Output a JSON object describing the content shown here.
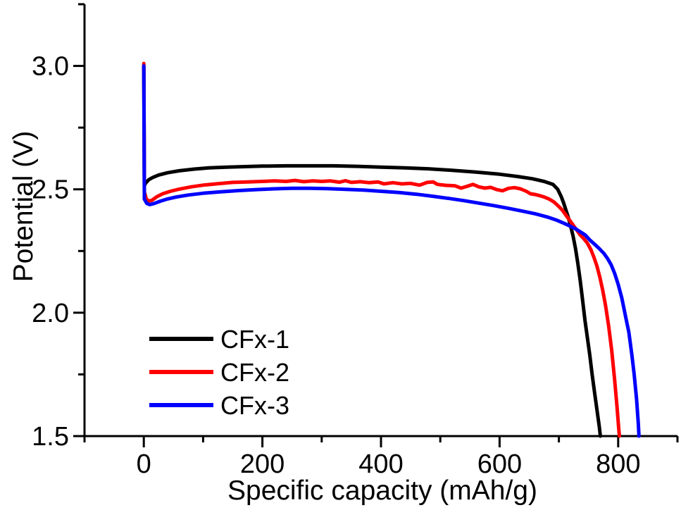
{
  "chart_data": {
    "type": "line",
    "title": "",
    "xlabel": "Specific capacity (mAh/g)",
    "ylabel": "Potential (V)",
    "xlim": [
      -100,
      900
    ],
    "ylim": [
      1.5,
      3.25
    ],
    "grid": false,
    "background": "#ffffff",
    "axis_color": "#000000",
    "x_major_ticks": [
      0,
      200,
      400,
      600,
      800
    ],
    "x_major_tick_labels": [
      "0",
      "200",
      "400",
      "600",
      "800"
    ],
    "x_minor_ticks": [
      -100,
      100,
      300,
      500,
      700,
      900
    ],
    "y_major_ticks": [
      1.5,
      2.0,
      2.5,
      3.0
    ],
    "y_major_tick_labels": [
      "1.5",
      "2.0",
      "2.5",
      "3.0"
    ],
    "y_minor_ticks": [
      1.75,
      2.25,
      2.75,
      3.25
    ],
    "legend_position": "lower-left-inside",
    "series": [
      {
        "name": "CFx-1",
        "color": "#000000",
        "points": [
          [
            0,
            3.0
          ],
          [
            1,
            2.515
          ],
          [
            3,
            2.525
          ],
          [
            8,
            2.538
          ],
          [
            15,
            2.548
          ],
          [
            25,
            2.558
          ],
          [
            40,
            2.567
          ],
          [
            60,
            2.575
          ],
          [
            85,
            2.582
          ],
          [
            110,
            2.587
          ],
          [
            140,
            2.59
          ],
          [
            170,
            2.592
          ],
          [
            200,
            2.594
          ],
          [
            240,
            2.595
          ],
          [
            280,
            2.595
          ],
          [
            320,
            2.595
          ],
          [
            360,
            2.593
          ],
          [
            400,
            2.59
          ],
          [
            440,
            2.587
          ],
          [
            480,
            2.583
          ],
          [
            520,
            2.577
          ],
          [
            560,
            2.57
          ],
          [
            600,
            2.561
          ],
          [
            630,
            2.552
          ],
          [
            655,
            2.543
          ],
          [
            675,
            2.532
          ],
          [
            690,
            2.52
          ],
          [
            698,
            2.5
          ],
          [
            704,
            2.47
          ],
          [
            708,
            2.445
          ],
          [
            712,
            2.415
          ],
          [
            716,
            2.385
          ],
          [
            720,
            2.35
          ],
          [
            724,
            2.31
          ],
          [
            728,
            2.26
          ],
          [
            732,
            2.2
          ],
          [
            736,
            2.13
          ],
          [
            740,
            2.05
          ],
          [
            744,
            1.97
          ],
          [
            748,
            1.9
          ],
          [
            752,
            1.83
          ],
          [
            756,
            1.75
          ],
          [
            760,
            1.68
          ],
          [
            764,
            1.61
          ],
          [
            768,
            1.54
          ],
          [
            770,
            1.5
          ]
        ]
      },
      {
        "name": "CFx-2",
        "color": "#ff0000",
        "points": [
          [
            0,
            3.01
          ],
          [
            1,
            2.49
          ],
          [
            4,
            2.462
          ],
          [
            8,
            2.452
          ],
          [
            14,
            2.456
          ],
          [
            22,
            2.47
          ],
          [
            32,
            2.482
          ],
          [
            45,
            2.492
          ],
          [
            60,
            2.501
          ],
          [
            80,
            2.51
          ],
          [
            100,
            2.517
          ],
          [
            125,
            2.523
          ],
          [
            150,
            2.528
          ],
          [
            175,
            2.53
          ],
          [
            200,
            2.532
          ],
          [
            220,
            2.534
          ],
          [
            240,
            2.532
          ],
          [
            255,
            2.536
          ],
          [
            270,
            2.531
          ],
          [
            285,
            2.534
          ],
          [
            300,
            2.532
          ],
          [
            315,
            2.534
          ],
          [
            330,
            2.529
          ],
          [
            340,
            2.535
          ],
          [
            350,
            2.528
          ],
          [
            365,
            2.531
          ],
          [
            380,
            2.527
          ],
          [
            395,
            2.53
          ],
          [
            405,
            2.522
          ],
          [
            420,
            2.527
          ],
          [
            435,
            2.522
          ],
          [
            450,
            2.524
          ],
          [
            465,
            2.517
          ],
          [
            478,
            2.528
          ],
          [
            488,
            2.53
          ],
          [
            495,
            2.52
          ],
          [
            510,
            2.516
          ],
          [
            525,
            2.514
          ],
          [
            535,
            2.505
          ],
          [
            545,
            2.512
          ],
          [
            555,
            2.52
          ],
          [
            565,
            2.51
          ],
          [
            575,
            2.505
          ],
          [
            585,
            2.508
          ],
          [
            595,
            2.499
          ],
          [
            605,
            2.494
          ],
          [
            615,
            2.504
          ],
          [
            625,
            2.507
          ],
          [
            635,
            2.502
          ],
          [
            645,
            2.492
          ],
          [
            652,
            2.482
          ],
          [
            660,
            2.479
          ],
          [
            668,
            2.474
          ],
          [
            676,
            2.468
          ],
          [
            684,
            2.46
          ],
          [
            692,
            2.448
          ],
          [
            700,
            2.43
          ],
          [
            706,
            2.415
          ],
          [
            712,
            2.395
          ],
          [
            718,
            2.375
          ],
          [
            724,
            2.355
          ],
          [
            730,
            2.335
          ],
          [
            736,
            2.315
          ],
          [
            742,
            2.3
          ],
          [
            748,
            2.282
          ],
          [
            754,
            2.255
          ],
          [
            759,
            2.225
          ],
          [
            764,
            2.19
          ],
          [
            769,
            2.145
          ],
          [
            774,
            2.09
          ],
          [
            779,
            2.025
          ],
          [
            784,
            1.945
          ],
          [
            789,
            1.85
          ],
          [
            794,
            1.73
          ],
          [
            798,
            1.62
          ],
          [
            801,
            1.53
          ],
          [
            802,
            1.5
          ]
        ]
      },
      {
        "name": "CFx-3",
        "color": "#0000ff",
        "points": [
          [
            0,
            3.0
          ],
          [
            1,
            2.46
          ],
          [
            5,
            2.443
          ],
          [
            10,
            2.438
          ],
          [
            18,
            2.443
          ],
          [
            28,
            2.452
          ],
          [
            40,
            2.461
          ],
          [
            55,
            2.469
          ],
          [
            75,
            2.477
          ],
          [
            100,
            2.484
          ],
          [
            130,
            2.49
          ],
          [
            160,
            2.495
          ],
          [
            190,
            2.499
          ],
          [
            220,
            2.502
          ],
          [
            250,
            2.504
          ],
          [
            280,
            2.504
          ],
          [
            310,
            2.503
          ],
          [
            340,
            2.5
          ],
          [
            370,
            2.497
          ],
          [
            400,
            2.492
          ],
          [
            430,
            2.487
          ],
          [
            460,
            2.48
          ],
          [
            490,
            2.471
          ],
          [
            515,
            2.463
          ],
          [
            540,
            2.454
          ],
          [
            565,
            2.444
          ],
          [
            590,
            2.434
          ],
          [
            615,
            2.423
          ],
          [
            640,
            2.411
          ],
          [
            660,
            2.401
          ],
          [
            680,
            2.388
          ],
          [
            695,
            2.376
          ],
          [
            708,
            2.363
          ],
          [
            718,
            2.352
          ],
          [
            728,
            2.34
          ],
          [
            736,
            2.328
          ],
          [
            744,
            2.316
          ],
          [
            752,
            2.295
          ],
          [
            760,
            2.278
          ],
          [
            768,
            2.26
          ],
          [
            776,
            2.24
          ],
          [
            782,
            2.22
          ],
          [
            788,
            2.195
          ],
          [
            794,
            2.16
          ],
          [
            800,
            2.115
          ],
          [
            806,
            2.06
          ],
          [
            812,
            1.99
          ],
          [
            818,
            1.92
          ],
          [
            823,
            1.83
          ],
          [
            827,
            1.75
          ],
          [
            831,
            1.65
          ],
          [
            834,
            1.55
          ],
          [
            835,
            1.5
          ]
        ]
      }
    ]
  }
}
